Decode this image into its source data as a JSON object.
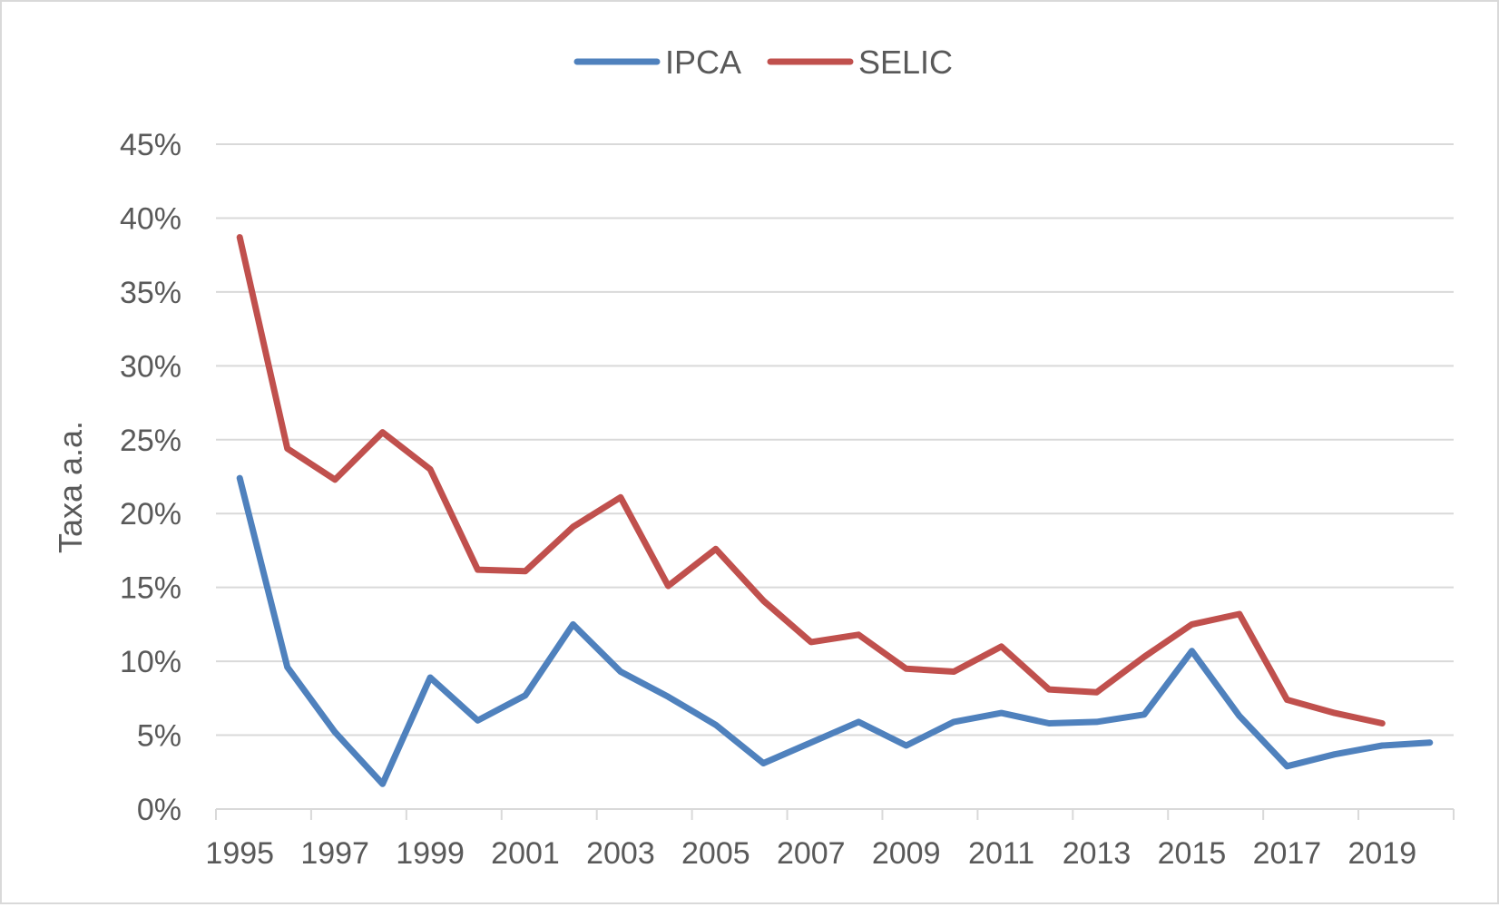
{
  "chart_data": {
    "type": "line",
    "title": "",
    "xlabel": "",
    "ylabel": "Taxa a.a.",
    "x": [
      1995,
      1996,
      1997,
      1998,
      1999,
      2000,
      2001,
      2002,
      2003,
      2004,
      2005,
      2006,
      2007,
      2008,
      2009,
      2010,
      2011,
      2012,
      2013,
      2014,
      2015,
      2016,
      2017,
      2018,
      2019,
      2020
    ],
    "x_tick_labels": [
      "1995",
      "1997",
      "1999",
      "2001",
      "2003",
      "2005",
      "2007",
      "2009",
      "2011",
      "2013",
      "2015",
      "2017",
      "2019"
    ],
    "y_tick_labels": [
      "0%",
      "5%",
      "10%",
      "15%",
      "20%",
      "25%",
      "30%",
      "35%",
      "40%",
      "45%"
    ],
    "ylim": [
      0,
      45
    ],
    "y_unit": "%",
    "grid": "horizontal",
    "legend_position": "top-center",
    "series": [
      {
        "name": "IPCA",
        "color": "#4F81BD",
        "values": [
          22.4,
          9.6,
          5.2,
          1.7,
          8.9,
          6.0,
          7.7,
          12.5,
          9.3,
          7.6,
          5.7,
          3.1,
          4.5,
          5.9,
          4.3,
          5.9,
          6.5,
          5.8,
          5.9,
          6.4,
          10.7,
          6.3,
          2.9,
          3.7,
          4.3,
          4.5
        ]
      },
      {
        "name": "SELIC",
        "color": "#C0504D",
        "values": [
          38.7,
          24.4,
          22.3,
          25.5,
          23.0,
          16.2,
          16.1,
          19.1,
          21.1,
          15.1,
          17.6,
          14.1,
          11.3,
          11.8,
          9.5,
          9.3,
          11.0,
          8.1,
          7.9,
          10.3,
          12.5,
          13.2,
          7.4,
          6.5,
          5.8,
          null
        ]
      }
    ]
  }
}
